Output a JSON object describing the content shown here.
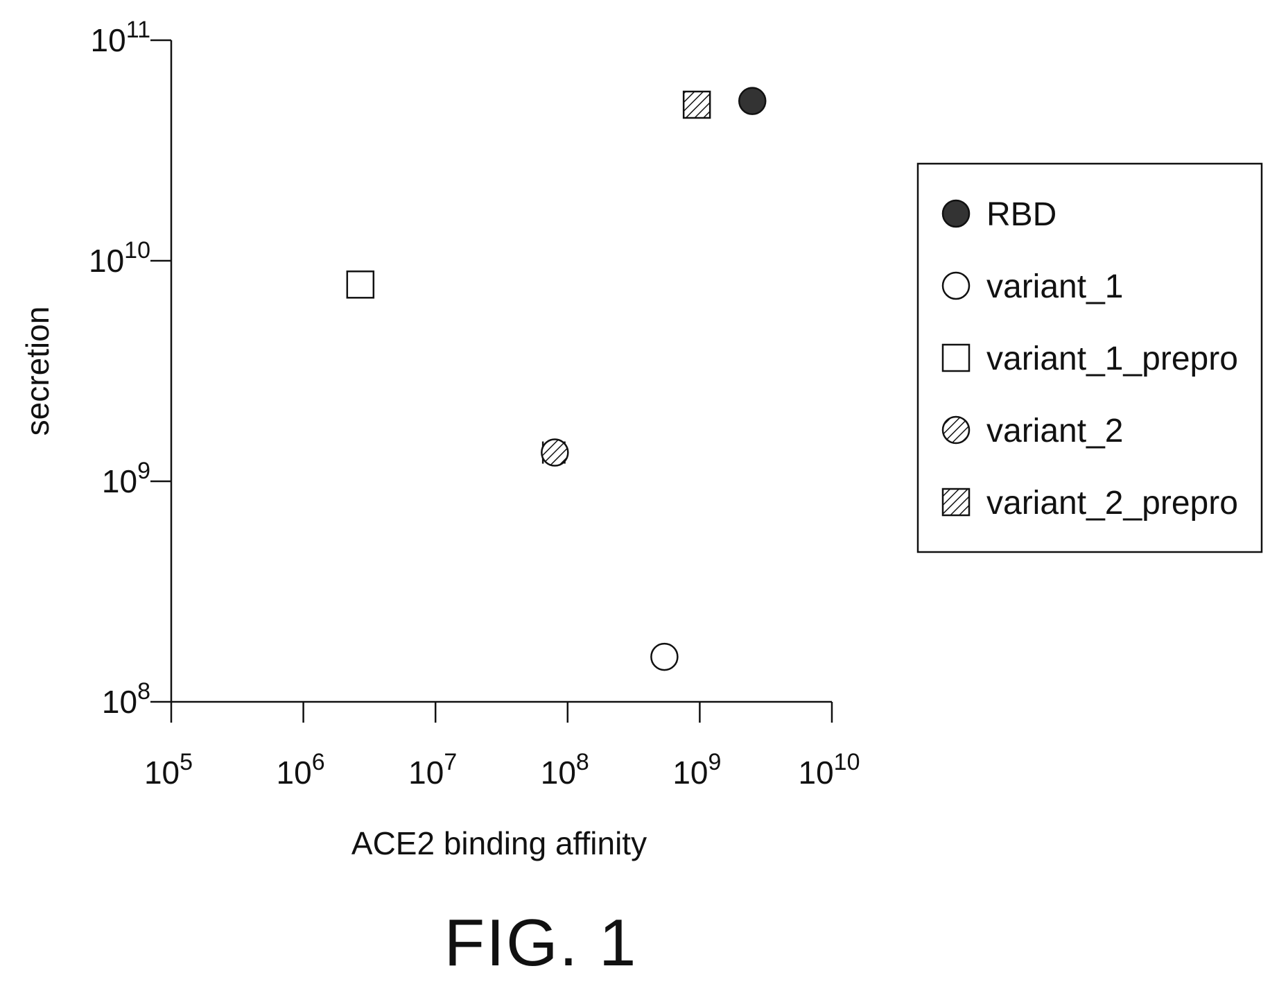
{
  "figure_label": "FIG. 1",
  "chart_data": {
    "type": "scatter",
    "title": "",
    "xlabel": "ACE2 binding affinity",
    "ylabel": "secretion",
    "x_scale": "log",
    "y_scale": "log",
    "xlim": [
      100000,
      10000000000
    ],
    "ylim": [
      100000000,
      100000000000
    ],
    "x_ticks": [
      {
        "value": 100000,
        "base": "10",
        "exp": "5"
      },
      {
        "value": 1000000,
        "base": "10",
        "exp": "6"
      },
      {
        "value": 10000000,
        "base": "10",
        "exp": "7"
      },
      {
        "value": 100000000,
        "base": "10",
        "exp": "8"
      },
      {
        "value": 1000000000,
        "base": "10",
        "exp": "9"
      },
      {
        "value": 10000000000,
        "base": "10",
        "exp": "10"
      }
    ],
    "y_ticks": [
      {
        "value": 100000000,
        "base": "10",
        "exp": "8"
      },
      {
        "value": 1000000000,
        "base": "10",
        "exp": "9"
      },
      {
        "value": 10000000000,
        "base": "10",
        "exp": "10"
      },
      {
        "value": 100000000000,
        "base": "10",
        "exp": "11"
      }
    ],
    "grid": false,
    "legend_position": "right",
    "series": [
      {
        "name": "RBD",
        "marker": "filled-circle",
        "x": 2500000000,
        "y": 53000000000,
        "x_err": 300000000
      },
      {
        "name": "variant_1",
        "marker": "open-circle",
        "x": 540000000,
        "y": 160000000,
        "x_err": 0,
        "note_skip": true
      },
      {
        "name": "variant_1_prepro",
        "marker": "open-square",
        "x": 2700000,
        "y": 7800000000,
        "x_err": 0
      },
      {
        "name": "variant_2",
        "marker": "hatched-circle",
        "x": 80000000,
        "y": 1350000000,
        "x_err": 15000000
      },
      {
        "name": "variant_2_prepro",
        "marker": "hatched-square",
        "x": 950000000,
        "y": 51000000000,
        "x_err": 0
      }
    ]
  }
}
